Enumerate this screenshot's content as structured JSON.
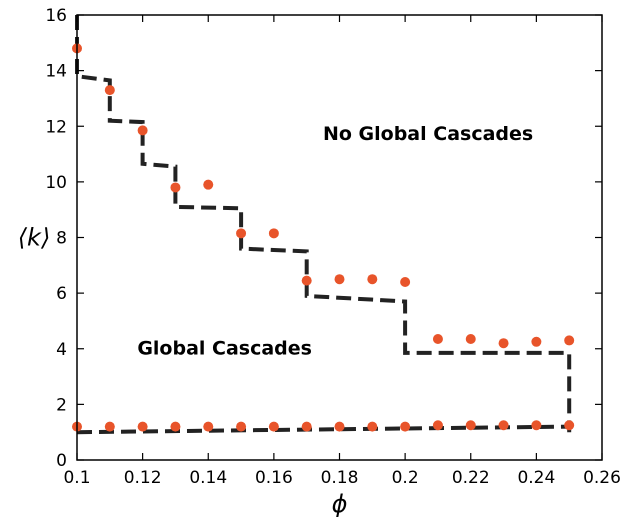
{
  "chart_data": {
    "type": "scatter",
    "title": "",
    "xlabel": "ϕ",
    "ylabel": "⟨k⟩",
    "xlim": [
      0.1,
      0.26
    ],
    "ylim": [
      0,
      16
    ],
    "xticks": [
      0.1,
      0.12,
      0.14,
      0.16,
      0.18,
      0.2,
      0.22,
      0.24,
      0.26
    ],
    "xtick_labels": [
      "0.1",
      "0.12",
      "0.14",
      "0.16",
      "0.18",
      "0.2",
      "0.22",
      "0.24",
      "0.26"
    ],
    "yticks": [
      0,
      2,
      4,
      6,
      8,
      10,
      12,
      14,
      16
    ],
    "ytick_labels": [
      "0",
      "2",
      "4",
      "6",
      "8",
      "10",
      "12",
      "14",
      "16"
    ],
    "grid": false,
    "annotations": [
      {
        "text": "No Global Cascades",
        "x": 0.207,
        "y": 11.5
      },
      {
        "text": "Global Cascades",
        "x": 0.145,
        "y": 3.8
      }
    ],
    "series": [
      {
        "kind": "points",
        "color": "#e8542a",
        "x": [
          0.1,
          0.11,
          0.12,
          0.13,
          0.14,
          0.15,
          0.16,
          0.17,
          0.18,
          0.19,
          0.2,
          0.21,
          0.22,
          0.23,
          0.24,
          0.25
        ],
        "y": [
          14.8,
          13.3,
          11.85,
          9.8,
          9.9,
          8.15,
          8.15,
          6.45,
          6.5,
          6.5,
          6.4,
          4.35,
          4.35,
          4.2,
          4.25,
          4.3
        ]
      },
      {
        "kind": "points",
        "color": "#e8542a",
        "x": [
          0.1,
          0.11,
          0.12,
          0.13,
          0.14,
          0.15,
          0.16,
          0.17,
          0.18,
          0.19,
          0.2,
          0.21,
          0.22,
          0.23,
          0.24,
          0.25
        ],
        "y": [
          1.2,
          1.2,
          1.2,
          1.2,
          1.2,
          1.2,
          1.2,
          1.2,
          1.2,
          1.2,
          1.2,
          1.25,
          1.25,
          1.25,
          1.25,
          1.25
        ]
      },
      {
        "kind": "dashed-line",
        "color": "#222222",
        "x": [
          0.1,
          0.1,
          0.11,
          0.11,
          0.12,
          0.12,
          0.13,
          0.13,
          0.15,
          0.15,
          0.17,
          0.17,
          0.2,
          0.2,
          0.25,
          0.25
        ],
        "y": [
          16,
          13.8,
          13.65,
          12.2,
          12.15,
          10.65,
          10.55,
          9.1,
          9.05,
          7.6,
          7.5,
          5.9,
          5.7,
          3.85,
          3.85,
          1.0
        ]
      },
      {
        "kind": "dashed-line",
        "color": "#222222",
        "x": [
          0.1,
          0.25
        ],
        "y": [
          1.0,
          1.2
        ]
      }
    ]
  }
}
